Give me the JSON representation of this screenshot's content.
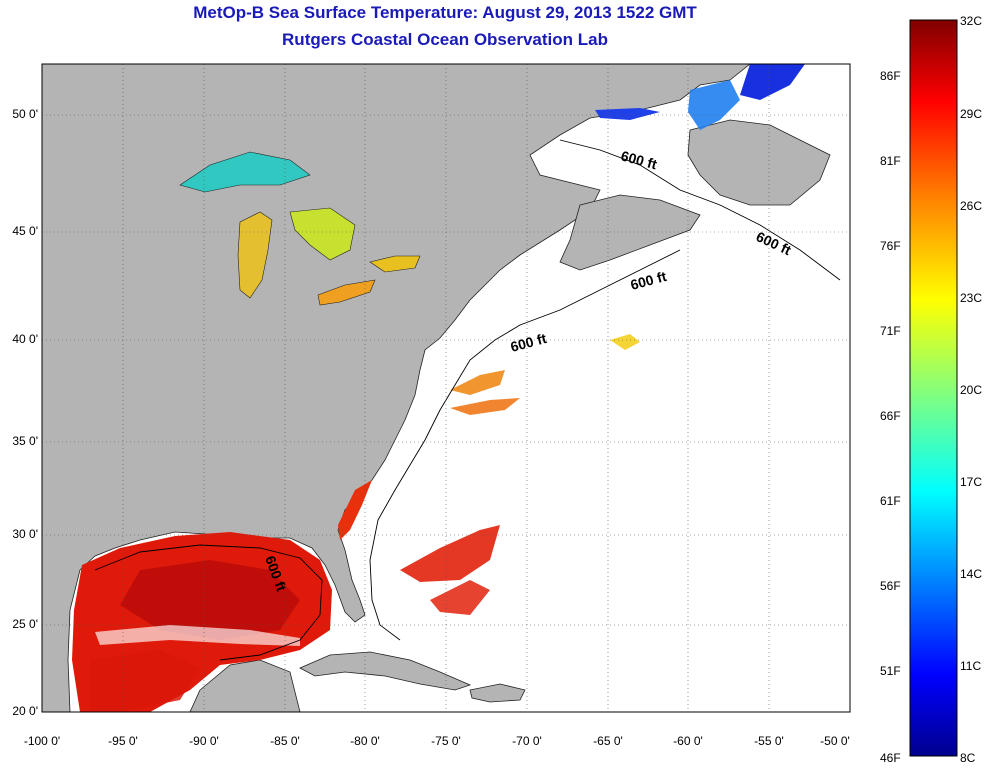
{
  "header": {
    "title": "MetOp-B Sea Surface Temperature:  August 29, 2013 1522 GMT",
    "subtitle": "Rutgers Coastal Ocean Observation Lab"
  },
  "map": {
    "lat_ticks": [
      "50 0'",
      "45 0'",
      "40 0'",
      "35 0'",
      "30 0'",
      "25 0'",
      "20 0'"
    ],
    "lon_ticks": [
      "-100 0'",
      "-95 0'",
      "-90 0'",
      "-85 0'",
      "-80 0'",
      "-75 0'",
      "-70 0'",
      "-65 0'",
      "-60 0'",
      "-55 0'",
      "-50 0'"
    ],
    "lat_range": [
      20,
      52.5
    ],
    "lon_range": [
      -100,
      -50
    ],
    "grid": "dotted",
    "land_color": "#b4b4b4",
    "no_data_color": "#ffffff",
    "contour_labels": [
      "600 ft",
      "600 ft",
      "600 ft",
      "600 ft",
      "600 ft"
    ]
  },
  "colorbar": {
    "celsius_labels": [
      "32C",
      "29C",
      "26C",
      "23C",
      "20C",
      "17C",
      "14C",
      "11C",
      "8C"
    ],
    "fahrenheit_labels": [
      "86F",
      "81F",
      "76F",
      "71F",
      "66F",
      "61F",
      "56F",
      "51F",
      "46F"
    ],
    "range_c": [
      8,
      32
    ],
    "colormap": [
      "#00008f",
      "#0000ff",
      "#0080ff",
      "#00ffff",
      "#80ff80",
      "#ffff00",
      "#ff8000",
      "#ff0000",
      "#800000"
    ]
  }
}
